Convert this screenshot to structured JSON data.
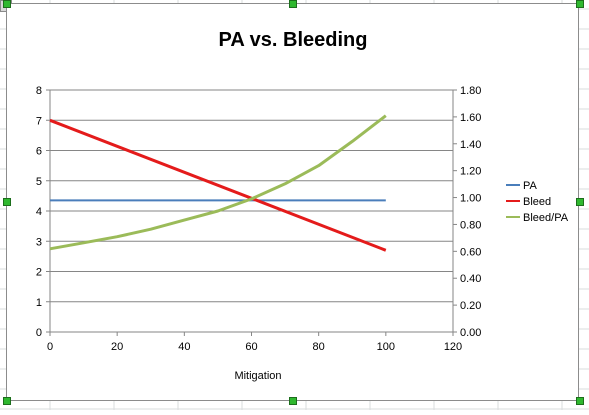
{
  "colors": {
    "pa": "#4a7ebb",
    "bleed": "#e41b1b",
    "bleed_pa": "#9bbb59",
    "grid": "#868686",
    "handle": "#2fb82f"
  },
  "chart_data": {
    "type": "line",
    "title": "PA vs. Bleeding",
    "xlabel": "Mitigation",
    "ylabel": "",
    "y2label": "",
    "xlim": [
      0,
      120
    ],
    "ylim": [
      0,
      8
    ],
    "y2lim": [
      0,
      1.8
    ],
    "x_ticks": [
      "0",
      "20",
      "40",
      "60",
      "80",
      "100",
      "120"
    ],
    "y_ticks": [
      "0",
      "1",
      "2",
      "3",
      "4",
      "5",
      "6",
      "7",
      "8"
    ],
    "y2_ticks": [
      "0.00",
      "0.20",
      "0.40",
      "0.60",
      "0.80",
      "1.00",
      "1.20",
      "1.40",
      "1.60",
      "1.80"
    ],
    "grid": true,
    "legend_position": "right",
    "series": [
      {
        "name": "PA",
        "axis": "left",
        "color": "#4a7ebb",
        "x": [
          0,
          100
        ],
        "values": [
          4.35,
          4.35
        ]
      },
      {
        "name": "Bleed",
        "axis": "left",
        "color": "#e41b1b",
        "x": [
          0,
          100
        ],
        "values": [
          7.0,
          2.7
        ]
      },
      {
        "name": "Bleed/PA",
        "axis": "left",
        "color": "#9bbb59",
        "x": [
          0,
          10,
          20,
          30,
          40,
          50,
          60,
          70,
          80,
          90,
          100
        ],
        "values": [
          2.75,
          2.95,
          3.15,
          3.4,
          3.7,
          4.0,
          4.4,
          4.9,
          5.5,
          6.3,
          7.15
        ]
      }
    ]
  }
}
